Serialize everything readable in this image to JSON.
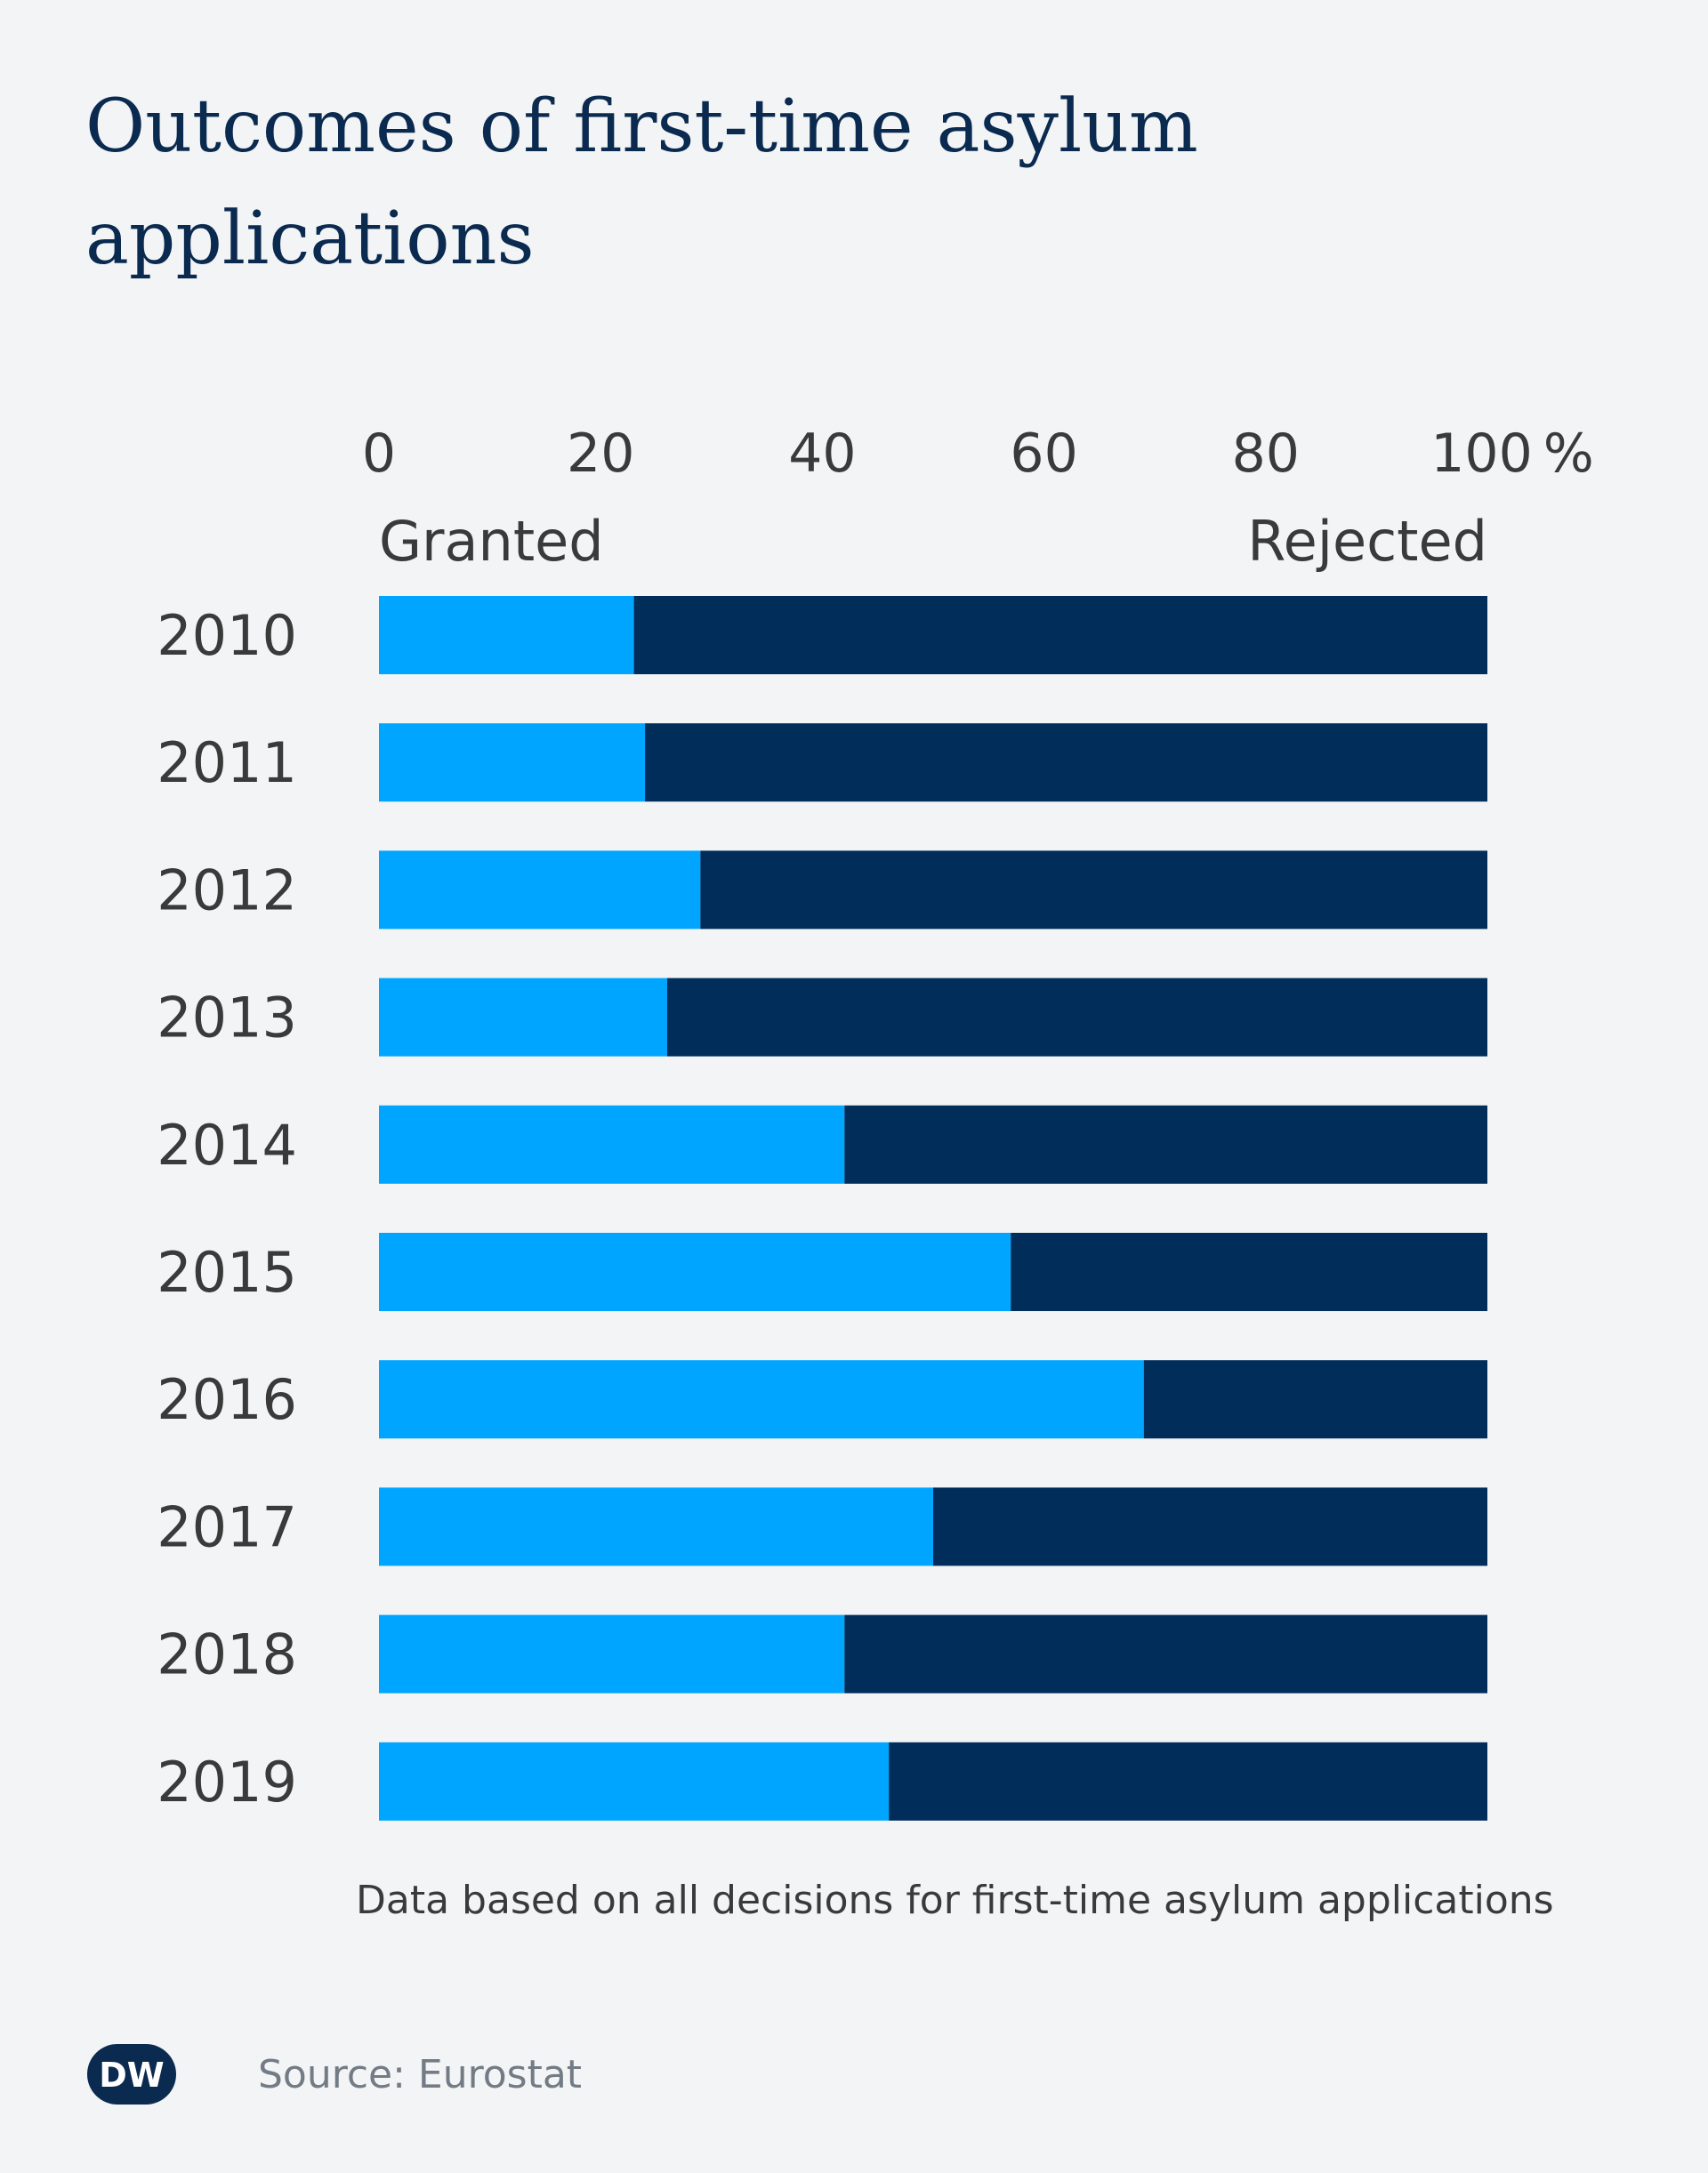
{
  "title": "Outcomes of first-time asylum applications",
  "note": "Data based on all decisions for first-time asylum applications",
  "source": "Source: Eurostat",
  "logo": {
    "text": "DW",
    "icon": "dw-logo-icon"
  },
  "colors": {
    "background": "#f2f4f6",
    "granted": "#00a5ff",
    "rejected": "#002d5a",
    "title": "#0b2a4f",
    "text": "#3a3a3a",
    "source": "#737b85"
  },
  "chart_data": {
    "type": "bar",
    "orientation": "horizontal",
    "stacked": true,
    "xlim": [
      0,
      100
    ],
    "x_ticks": [
      "0",
      "20",
      "40",
      "60",
      "80",
      "100"
    ],
    "x_unit": "%",
    "grid": false,
    "categories": [
      "2010",
      "2011",
      "2012",
      "2013",
      "2014",
      "2015",
      "2016",
      "2017",
      "2018",
      "2019"
    ],
    "series": [
      {
        "name": "Granted",
        "label_position": "left",
        "values": [
          23,
          24,
          29,
          26,
          42,
          57,
          69,
          50,
          42,
          46
        ]
      },
      {
        "name": "Rejected",
        "label_position": "right",
        "values": [
          77,
          76,
          71,
          74,
          58,
          43,
          31,
          50,
          58,
          54
        ]
      }
    ]
  }
}
